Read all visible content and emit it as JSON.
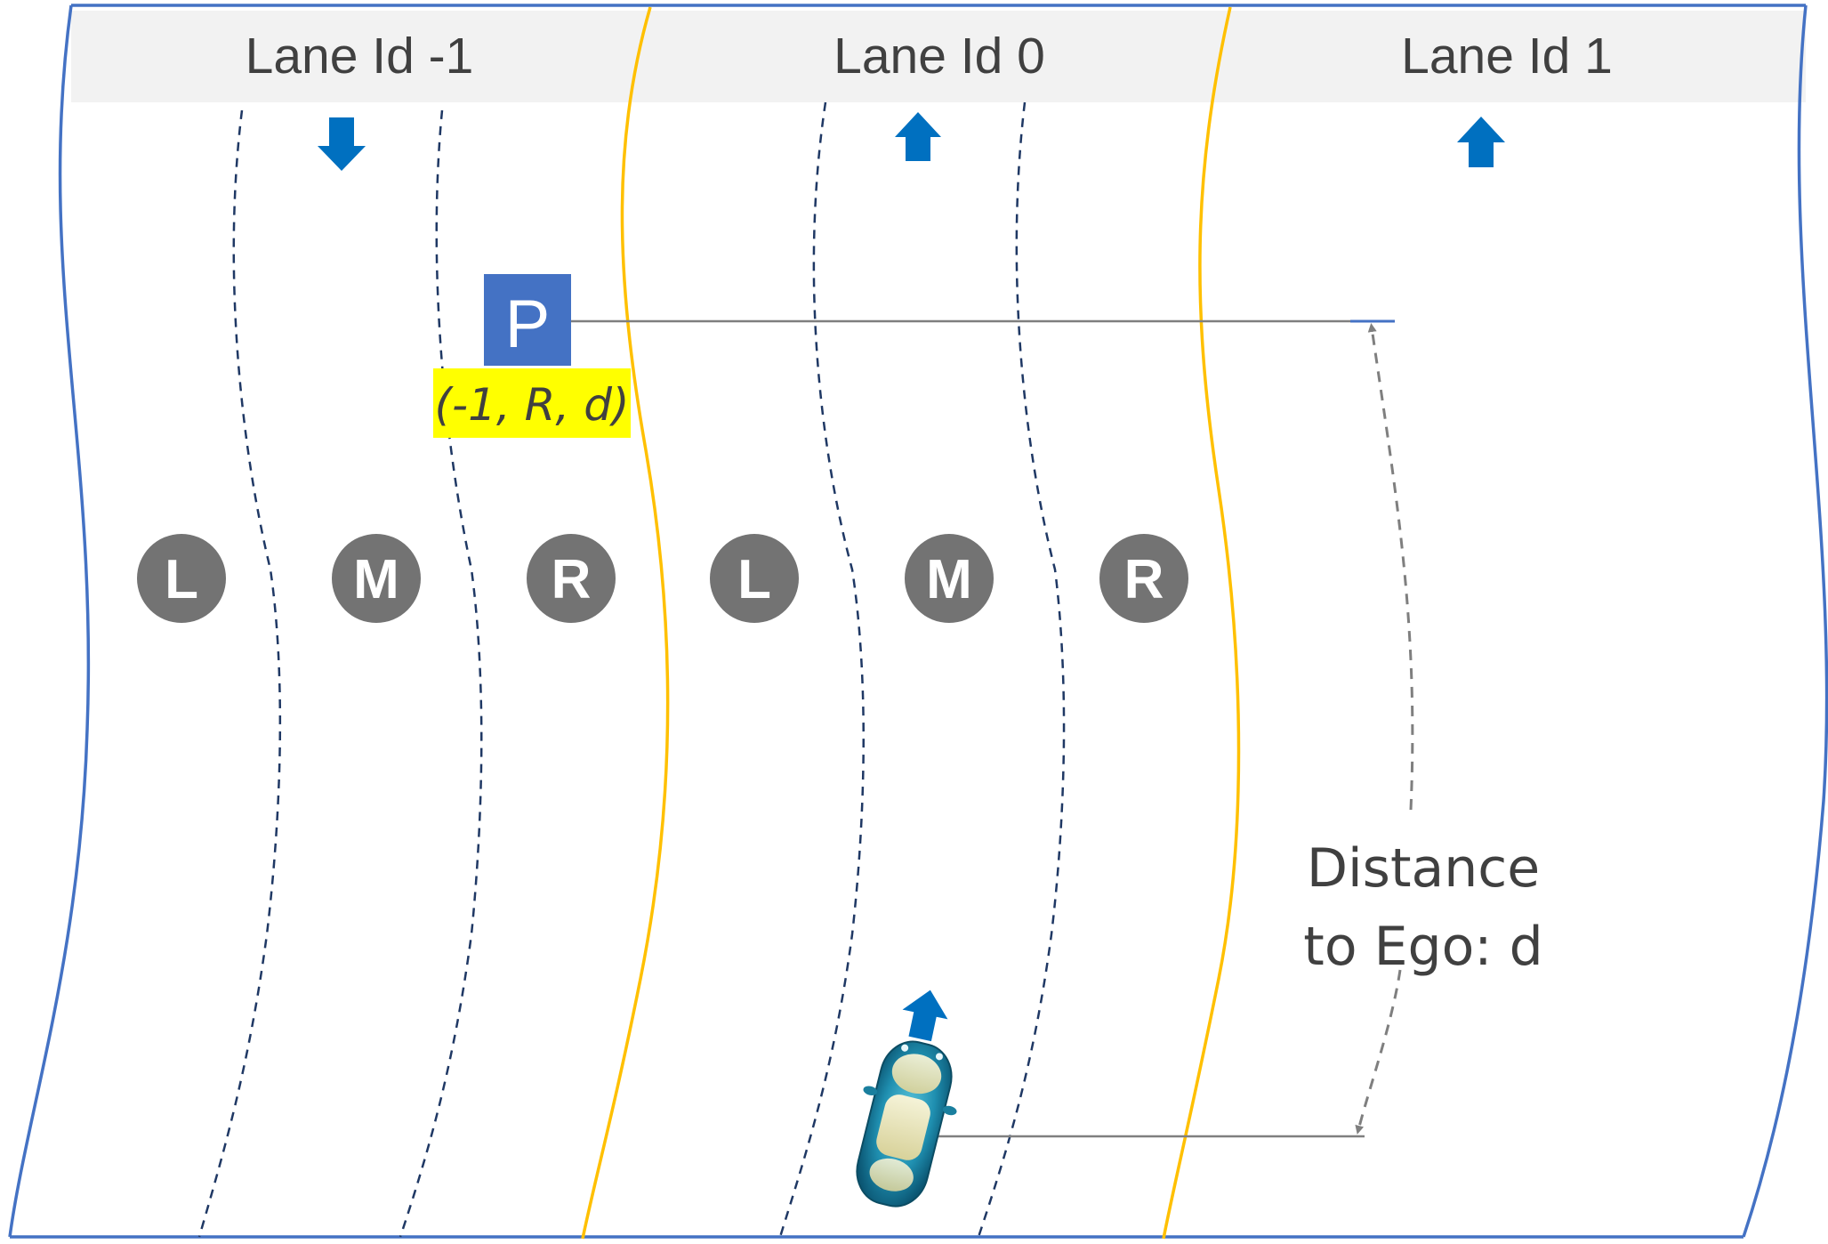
{
  "diagram": {
    "lane_headers": [
      {
        "label": "Lane Id -1"
      },
      {
        "label": "Lane Id 0"
      },
      {
        "label": "Lane Id 1"
      }
    ],
    "positions": [
      {
        "letter": "L"
      },
      {
        "letter": "M"
      },
      {
        "letter": "R"
      },
      {
        "letter": "L"
      },
      {
        "letter": "M"
      },
      {
        "letter": "R"
      }
    ],
    "parking": {
      "sign": "P",
      "tag": "(-1, R, d)"
    },
    "distance_label": {
      "line1": "Distance",
      "line2": "to Ego: d"
    },
    "colors": {
      "road_edge": "#4472C4",
      "lane_divider": "#FFC000",
      "dashed_line": "#1F3864",
      "arrow": "#0070C0",
      "circle": "#737373",
      "parking_sign": "#4472C4",
      "tag_highlight": "#FFFF00",
      "header_band": "#F2F2F2",
      "ego_car": "#1F8FB0"
    },
    "icons": {
      "direction_arrows": [
        "arrow-down-icon",
        "arrow-up-icon",
        "arrow-up-icon"
      ],
      "ego_heading": "arrow-up-icon",
      "ego_vehicle": "car-icon"
    }
  }
}
